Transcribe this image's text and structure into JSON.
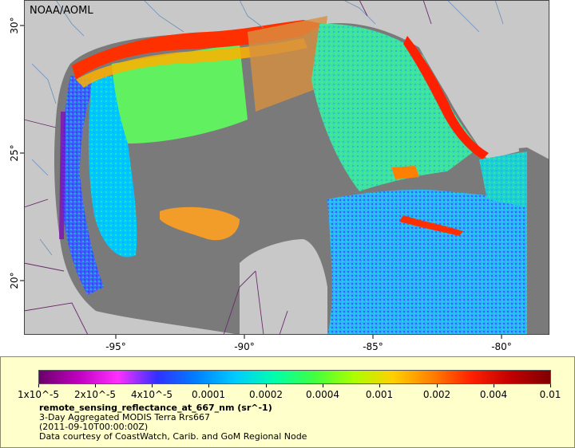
{
  "map": {
    "watermark": "NOAA/AOML",
    "x_ticks": [
      "-95°",
      "-90°",
      "-85°",
      "-80°"
    ],
    "y_ticks": [
      "30°",
      "25°",
      "20°"
    ],
    "colors": {
      "land": "#c8c8c8",
      "no_data": "#7a7a7a",
      "borders": "#6a2a6a",
      "rivers": "#6a8fb8"
    }
  },
  "legend": {
    "scale_labels": [
      "1x10^-5",
      "2x10^-5",
      "4x10^-5",
      "0.0001",
      "0.0002",
      "0.0004",
      "0.001",
      "0.002",
      "0.004",
      "0.01"
    ],
    "colormap": [
      "#6a006a",
      "#c000c0",
      "#ff30ff",
      "#3030ff",
      "#0080ff",
      "#00ccff",
      "#00ffaa",
      "#40ff40",
      "#aaff00",
      "#ffd000",
      "#ff8000",
      "#ff2000",
      "#c00000",
      "#800000"
    ],
    "variable": "remote_sensing_reflectance_at_667_nm (sr^-1)",
    "product": "3-Day Aggregated MODIS Terra Rrs667",
    "date": "(2011-09-10T00:00:00Z)",
    "credit": "Data courtesy of CoastWatch, Carib. and GoM Regional Node"
  }
}
